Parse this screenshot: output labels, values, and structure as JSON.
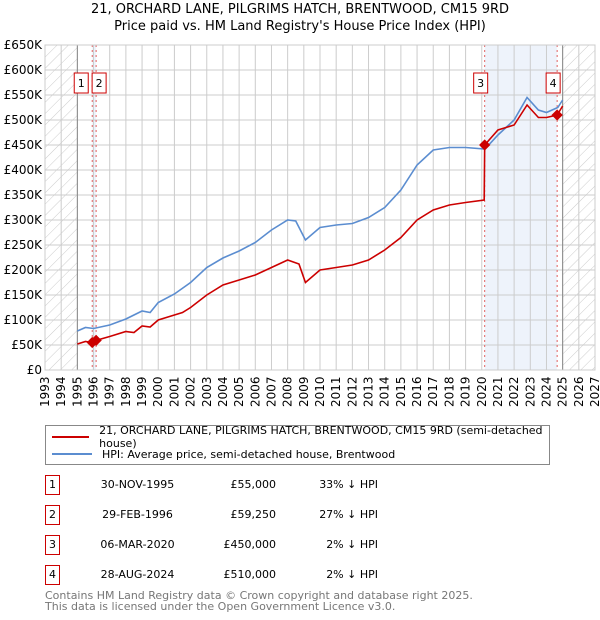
{
  "title_line1": "21, ORCHARD LANE, PILGRIMS HATCH, BRENTWOOD, CM15 9RD",
  "title_line2": "Price paid vs. HM Land Registry's House Price Index (HPI)",
  "colors": {
    "property": "#cc0000",
    "hpi": "#5b8dd0",
    "shade": "#eef3fb"
  },
  "chart_data": {
    "type": "line",
    "xlim": [
      1993,
      2027
    ],
    "ylim": [
      0,
      650000
    ],
    "x_ticks": [
      1993,
      1994,
      1995,
      1996,
      1997,
      1998,
      1999,
      2000,
      2001,
      2002,
      2003,
      2004,
      2005,
      2006,
      2007,
      2008,
      2009,
      2010,
      2011,
      2012,
      2013,
      2014,
      2015,
      2016,
      2017,
      2018,
      2019,
      2020,
      2021,
      2022,
      2023,
      2024,
      2025,
      2026,
      2027
    ],
    "y_ticks": [
      {
        "v": 0,
        "label": "£0"
      },
      {
        "v": 50000,
        "label": "£50K"
      },
      {
        "v": 100000,
        "label": "£100K"
      },
      {
        "v": 150000,
        "label": "£150K"
      },
      {
        "v": 200000,
        "label": "£200K"
      },
      {
        "v": 250000,
        "label": "£250K"
      },
      {
        "v": 300000,
        "label": "£300K"
      },
      {
        "v": 350000,
        "label": "£350K"
      },
      {
        "v": 400000,
        "label": "£400K"
      },
      {
        "v": 450000,
        "label": "£450K"
      },
      {
        "v": 500000,
        "label": "£500K"
      },
      {
        "v": 550000,
        "label": "£550K"
      },
      {
        "v": 600000,
        "label": "£600K"
      },
      {
        "v": 650000,
        "label": "£650K"
      }
    ],
    "data_range": [
      1995,
      2025
    ],
    "series": [
      {
        "name": "21, ORCHARD LANE, PILGRIMS HATCH, BRENTWOOD, CM15 9RD (semi-detached house)",
        "color": "#cc0000",
        "points": [
          [
            1995,
            52000
          ],
          [
            1995.5,
            57000
          ],
          [
            1995.92,
            55000
          ],
          [
            1996.16,
            59250
          ],
          [
            1997,
            67000
          ],
          [
            1998,
            77000
          ],
          [
            1998.5,
            75000
          ],
          [
            1999,
            88000
          ],
          [
            1999.5,
            86000
          ],
          [
            2000,
            100000
          ],
          [
            2001,
            110000
          ],
          [
            2001.5,
            115000
          ],
          [
            2002,
            125000
          ],
          [
            2003,
            150000
          ],
          [
            2004,
            170000
          ],
          [
            2005,
            180000
          ],
          [
            2006,
            190000
          ],
          [
            2007,
            205000
          ],
          [
            2008,
            220000
          ],
          [
            2008.7,
            212000
          ],
          [
            2009.1,
            175000
          ],
          [
            2010,
            200000
          ],
          [
            2011,
            205000
          ],
          [
            2012,
            210000
          ],
          [
            2013,
            220000
          ],
          [
            2014,
            240000
          ],
          [
            2015,
            265000
          ],
          [
            2016,
            300000
          ],
          [
            2017,
            320000
          ],
          [
            2018,
            330000
          ],
          [
            2019,
            335000
          ],
          [
            2020.15,
            340000
          ],
          [
            2020.18,
            450000
          ],
          [
            2021,
            480000
          ],
          [
            2022,
            490000
          ],
          [
            2022.8,
            530000
          ],
          [
            2023.5,
            505000
          ],
          [
            2024,
            505000
          ],
          [
            2024.66,
            510000
          ],
          [
            2025,
            528000
          ]
        ]
      },
      {
        "name": "HPI: Average price, semi-detached house, Brentwood",
        "color": "#5b8dd0",
        "points": [
          [
            1995,
            78000
          ],
          [
            1995.5,
            85000
          ],
          [
            1996,
            83000
          ],
          [
            1997,
            90000
          ],
          [
            1998,
            102000
          ],
          [
            1999,
            118000
          ],
          [
            1999.5,
            115000
          ],
          [
            2000,
            135000
          ],
          [
            2001,
            152000
          ],
          [
            2002,
            175000
          ],
          [
            2003,
            205000
          ],
          [
            2004,
            224000
          ],
          [
            2005,
            238000
          ],
          [
            2006,
            255000
          ],
          [
            2007,
            280000
          ],
          [
            2008,
            300000
          ],
          [
            2008.5,
            298000
          ],
          [
            2009.1,
            260000
          ],
          [
            2010,
            285000
          ],
          [
            2011,
            290000
          ],
          [
            2012,
            293000
          ],
          [
            2013,
            305000
          ],
          [
            2014,
            325000
          ],
          [
            2015,
            360000
          ],
          [
            2016,
            410000
          ],
          [
            2017,
            440000
          ],
          [
            2018,
            445000
          ],
          [
            2019,
            445000
          ],
          [
            2020.2,
            442000
          ],
          [
            2021,
            470000
          ],
          [
            2022,
            500000
          ],
          [
            2022.8,
            545000
          ],
          [
            2023.5,
            520000
          ],
          [
            2024,
            515000
          ],
          [
            2024.7,
            525000
          ],
          [
            2025,
            540000
          ]
        ]
      }
    ],
    "sales": [
      {
        "n": "1",
        "x": 1995.92,
        "price": 55000
      },
      {
        "n": "2",
        "x": 1996.16,
        "price": 59250
      },
      {
        "n": "3",
        "x": 2020.18,
        "price": 450000
      },
      {
        "n": "4",
        "x": 2024.66,
        "price": 510000
      }
    ]
  },
  "legend": {
    "property": "21, ORCHARD LANE, PILGRIMS HATCH, BRENTWOOD, CM15 9RD (semi-detached house)",
    "hpi": "HPI: Average price, semi-detached house, Brentwood"
  },
  "table": [
    {
      "n": "1",
      "date": "30-NOV-1995",
      "price": "£55,000",
      "hpi": "33% ↓ HPI"
    },
    {
      "n": "2",
      "date": "29-FEB-1996",
      "price": "£59,250",
      "hpi": "27% ↓ HPI"
    },
    {
      "n": "3",
      "date": "06-MAR-2020",
      "price": "£450,000",
      "hpi": "2% ↓ HPI"
    },
    {
      "n": "4",
      "date": "28-AUG-2024",
      "price": "£510,000",
      "hpi": "2% ↓ HPI"
    }
  ],
  "footer": {
    "line1": "Contains HM Land Registry data © Crown copyright and database right 2025.",
    "line2": "This data is licensed under the Open Government Licence v3.0."
  }
}
